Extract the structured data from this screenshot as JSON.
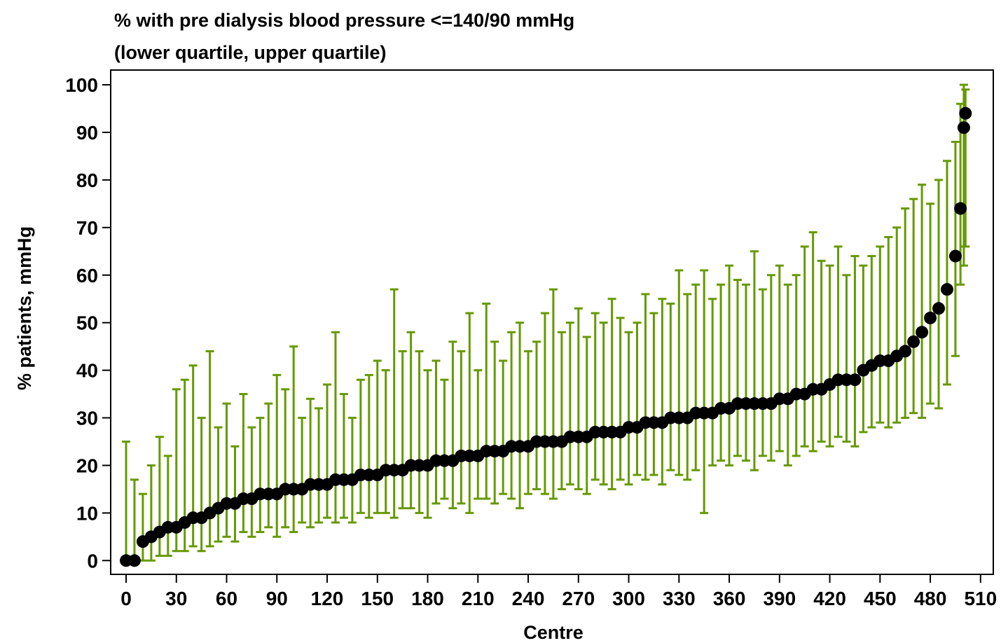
{
  "chart_data": {
    "type": "errorbar",
    "title": "% with pre dialysis blood pressure <=140/90 mmHg",
    "subtitle": "(lower quartile, upper quartile)",
    "x_label": "Centre",
    "y_label": "% patients, mmHg",
    "bar_color": "#669900",
    "point_color": "#000000",
    "xlim": [
      -9.2,
      517.6
    ],
    "ylim": [
      -2.9,
      103.1
    ],
    "xticks": [
      0,
      30,
      60,
      90,
      120,
      150,
      180,
      210,
      240,
      270,
      300,
      330,
      360,
      390,
      420,
      450,
      480,
      510
    ],
    "yticks": [
      0,
      10,
      20,
      30,
      40,
      50,
      60,
      70,
      80,
      90,
      100
    ],
    "x": [
      0,
      5,
      10,
      15,
      20,
      25,
      30,
      35,
      40,
      45,
      50,
      55,
      60,
      65,
      70,
      75,
      80,
      85,
      90,
      95,
      100,
      105,
      110,
      115,
      120,
      125,
      130,
      135,
      140,
      145,
      150,
      155,
      160,
      165,
      170,
      175,
      180,
      185,
      190,
      195,
      200,
      205,
      210,
      215,
      220,
      225,
      230,
      235,
      240,
      245,
      250,
      255,
      260,
      265,
      270,
      275,
      280,
      285,
      290,
      295,
      300,
      305,
      310,
      315,
      320,
      325,
      330,
      335,
      340,
      345,
      350,
      355,
      360,
      365,
      370,
      375,
      380,
      385,
      390,
      395,
      400,
      405,
      410,
      415,
      420,
      425,
      430,
      435,
      440,
      445,
      450,
      455,
      460,
      465,
      470,
      475,
      480,
      485,
      490,
      495,
      498,
      500,
      501
    ],
    "values": [
      0,
      0,
      4,
      5,
      6,
      7,
      7,
      8,
      9,
      9,
      10,
      11,
      12,
      12,
      13,
      13,
      14,
      14,
      14,
      15,
      15,
      15,
      16,
      16,
      16,
      17,
      17,
      17,
      18,
      18,
      18,
      19,
      19,
      19,
      20,
      20,
      20,
      21,
      21,
      21,
      22,
      22,
      22,
      23,
      23,
      23,
      24,
      24,
      24,
      25,
      25,
      25,
      25,
      26,
      26,
      26,
      27,
      27,
      27,
      27,
      28,
      28,
      29,
      29,
      29,
      30,
      30,
      30,
      31,
      31,
      31,
      32,
      32,
      33,
      33,
      33,
      33,
      33,
      34,
      34,
      35,
      35,
      36,
      36,
      37,
      38,
      38,
      38,
      40,
      41,
      42,
      42,
      43,
      44,
      46,
      48,
      51,
      53,
      57,
      64,
      74,
      91,
      94
    ],
    "lower": [
      0,
      0,
      0,
      0,
      1,
      1,
      2,
      2,
      3,
      2,
      3,
      4,
      5,
      4,
      6,
      5,
      6,
      7,
      5,
      7,
      6,
      8,
      7,
      8,
      9,
      8,
      9,
      8,
      10,
      9,
      10,
      10,
      9,
      11,
      11,
      10,
      9,
      12,
      13,
      11,
      12,
      10,
      13,
      13,
      12,
      14,
      13,
      11,
      14,
      15,
      14,
      13,
      15,
      16,
      15,
      14,
      17,
      16,
      15,
      17,
      16,
      18,
      17,
      18,
      16,
      19,
      18,
      17,
      19,
      10,
      20,
      21,
      20,
      22,
      21,
      19,
      22,
      21,
      23,
      20,
      22,
      24,
      23,
      25,
      24,
      26,
      25,
      24,
      27,
      28,
      29,
      28,
      29,
      30,
      31,
      30,
      33,
      32,
      37,
      43,
      58,
      62,
      66
    ],
    "upper": [
      25,
      17,
      14,
      20,
      26,
      22,
      36,
      38,
      41,
      30,
      44,
      28,
      33,
      24,
      35,
      28,
      30,
      33,
      39,
      36,
      45,
      30,
      34,
      32,
      37,
      48,
      35,
      30,
      38,
      39,
      42,
      40,
      57,
      44,
      48,
      44,
      40,
      42,
      38,
      46,
      44,
      52,
      40,
      54,
      46,
      42,
      48,
      50,
      44,
      46,
      52,
      57,
      48,
      50,
      53,
      47,
      52,
      50,
      55,
      51,
      48,
      50,
      56,
      52,
      55,
      54,
      61,
      56,
      58,
      61,
      55,
      58,
      62,
      59,
      58,
      65,
      57,
      60,
      62,
      58,
      60,
      66,
      69,
      63,
      62,
      66,
      60,
      64,
      62,
      64,
      66,
      68,
      70,
      74,
      76,
      79,
      75,
      80,
      84,
      88,
      96,
      100,
      99
    ]
  }
}
